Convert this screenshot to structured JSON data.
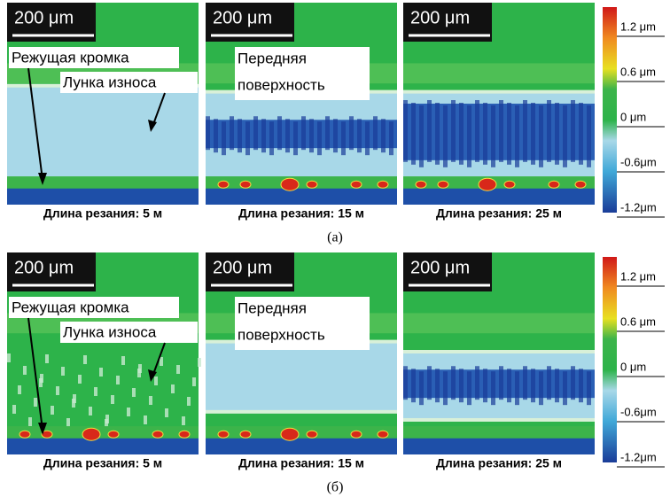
{
  "rows": [
    {
      "label": "(а)",
      "panels": [
        {
          "scale": "200 μm",
          "caption": "Длина резания: 5 м",
          "annotations": [
            "Режущая кромка",
            "Лунка износа"
          ]
        },
        {
          "scale": "200 μm",
          "caption": "Длина резания: 15 м",
          "annotations": [
            "Передняя",
            "поверхность"
          ]
        },
        {
          "scale": "200 μm",
          "caption": "Длина резания: 25 м",
          "annotations": []
        }
      ],
      "colorbar": [
        "1.2 μm",
        "0.6 μm",
        "0 μm",
        "-0.6μm",
        "-1.2μm"
      ]
    },
    {
      "label": "(б)",
      "panels": [
        {
          "scale": "200 μm",
          "caption": "Длина резания: 5 м",
          "annotations": [
            "Режущая кромка",
            "Лунка износа"
          ]
        },
        {
          "scale": "200 μm",
          "caption": "Длина резания: 15 м",
          "annotations": [
            "Передняя",
            "поверхность"
          ]
        },
        {
          "scale": "200 μm",
          "caption": "Длина резания: 25 м",
          "annotations": []
        }
      ],
      "colorbar": [
        "1.2 μm",
        "0.6 μm",
        "0 μm",
        "-0.6μm",
        "-1.2μm"
      ]
    }
  ]
}
